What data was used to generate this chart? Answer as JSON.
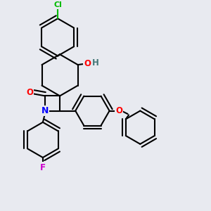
{
  "background_color": "#e8eaf0",
  "bond_color": "#000000",
  "bond_width": 1.5,
  "atom_colors": {
    "Cl": "#00bb00",
    "O": "#ff0000",
    "N": "#0000ff",
    "F": "#cc00cc",
    "H_label": "#447777",
    "C": "#000000"
  },
  "dpi": 100,
  "fig_width": 3.0,
  "fig_height": 3.0
}
